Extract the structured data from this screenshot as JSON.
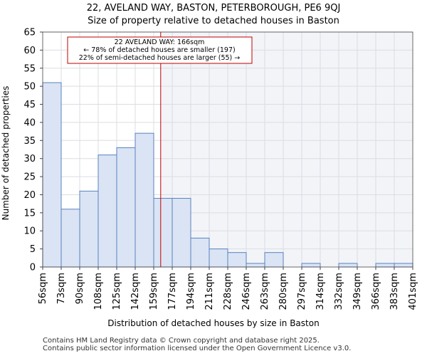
{
  "chart_data": {
    "type": "bar",
    "title_line1": "22, AVELAND WAY, BASTON, PETERBOROUGH, PE6 9QJ",
    "title_line2": "Size of property relative to detached houses in Baston",
    "xlabel": "Distribution of detached houses by size in Baston",
    "ylabel": "Number of detached properties",
    "bin_edges": [
      56,
      73,
      90,
      108,
      125,
      142,
      159,
      177,
      194,
      211,
      228,
      246,
      263,
      280,
      297,
      314,
      332,
      349,
      366,
      383,
      401
    ],
    "x_tick_labels": [
      "56sqm",
      "73sqm",
      "90sqm",
      "108sqm",
      "125sqm",
      "142sqm",
      "159sqm",
      "177sqm",
      "194sqm",
      "211sqm",
      "228sqm",
      "246sqm",
      "263sqm",
      "280sqm",
      "297sqm",
      "314sqm",
      "332sqm",
      "349sqm",
      "366sqm",
      "383sqm",
      "401sqm"
    ],
    "values": [
      51,
      16,
      21,
      31,
      33,
      37,
      19,
      19,
      8,
      5,
      4,
      1,
      4,
      0,
      1,
      0,
      1,
      0,
      1,
      1
    ],
    "ylim": [
      0,
      65
    ],
    "y_ticks": [
      0,
      5,
      10,
      15,
      20,
      25,
      30,
      35,
      40,
      45,
      50,
      55,
      60,
      65
    ],
    "property_value": 166,
    "annotation": {
      "line1": "22 AVELAND WAY: 166sqm",
      "line2": "← 78% of detached houses are smaller (197)",
      "line3": "22% of semi-detached houses are larger (55) →"
    },
    "colors": {
      "bar_fill": "#dae4f4",
      "bar_stroke": "#5a82be",
      "marker": "#c00000",
      "grid": "#dbdde3",
      "plot_bg_right": "#f2f4f8"
    }
  },
  "footer": {
    "line1": "Contains HM Land Registry data © Crown copyright and database right 2025.",
    "line2": "Contains public sector information licensed under the Open Government Licence v3.0."
  }
}
